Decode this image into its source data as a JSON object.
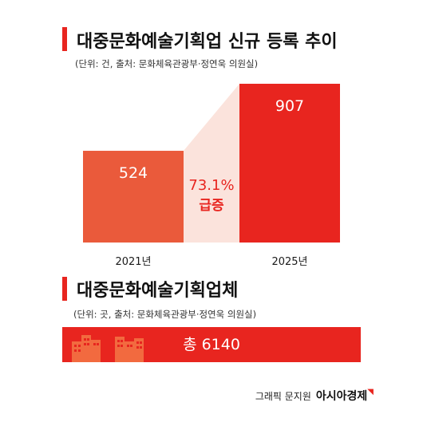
{
  "section1": {
    "title": "대중문화예술기획업 신규 등록 추이",
    "note": "(단위: 건, 출처: 문화체육관광부·정연욱 의원실)"
  },
  "chart_data": {
    "type": "bar",
    "title": "대중문화예술기획업 신규 등록 추이",
    "categories": [
      "2021년",
      "2025년"
    ],
    "values": [
      524,
      907
    ],
    "value_labels": [
      "524",
      "907"
    ],
    "growth_label": "73.1%",
    "growth_word": "급증",
    "colors": {
      "bar_2021": "#ea5a3b",
      "bar_2025": "#e8251f",
      "growth_band": "#fbe3dc",
      "growth_text": "#e8251f",
      "value_text": "#ffffff"
    },
    "grid": false,
    "legend": "none"
  },
  "section2": {
    "title": "대중문화예술기획업체",
    "note": "(단위: 곳, 출처: 문화체육관광부·정연욱 의원실)",
    "total_label": "총 6140",
    "icon": "buildings-icon"
  },
  "credit": {
    "text": "그래픽 문지원",
    "brand": "아시아경제"
  }
}
